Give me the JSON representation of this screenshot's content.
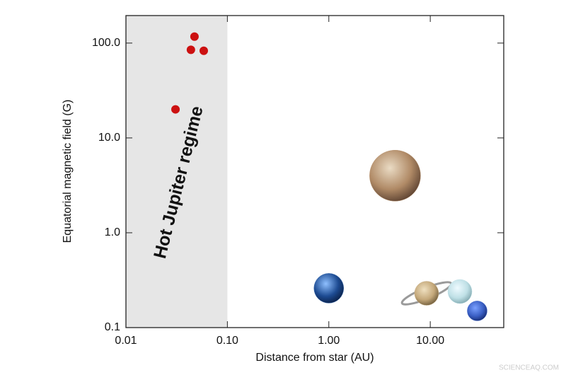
{
  "chart_data": {
    "type": "scatter",
    "x_label": "Distance from star (AU)",
    "y_label": "Equatorial magnetic field (G)",
    "xscale": "log",
    "yscale": "log",
    "xlim": [
      0.01,
      53
    ],
    "ylim": [
      0.1,
      195
    ],
    "xticks": [
      0.01,
      {
        "value": 0.1,
        "label": "0.10"
      },
      {
        "value": 1,
        "label": "1.00"
      },
      {
        "value": 10,
        "label": "10.00"
      }
    ],
    "yticks": [
      0.1,
      {
        "value": 1,
        "label": "1.0"
      },
      {
        "value": 10,
        "label": "10.0"
      },
      {
        "value": 100,
        "label": "100.0"
      }
    ],
    "shaded_region": {
      "xlim": [
        0.01,
        0.1
      ],
      "color": "#e6e6e6",
      "label": "Hot Jupiter regime"
    },
    "series": [
      {
        "color": "#cc1111",
        "x": [
          0.0308,
          0.0474,
          0.0437,
          0.0585
        ],
        "values": [
          20,
          117,
          85,
          83
        ]
      },
      {
        "colors": [
          "#3a6bb0",
          "#b58f6a",
          "#cdb58c",
          "#bfe0e6",
          "#3f66c8"
        ],
        "x": [
          1.0,
          4.5,
          9.2,
          19.6,
          29
        ],
        "values": [
          0.26,
          4.0,
          0.23,
          0.24,
          0.15
        ]
      }
    ],
    "watermark": "SCIENCEAQ.COM"
  }
}
